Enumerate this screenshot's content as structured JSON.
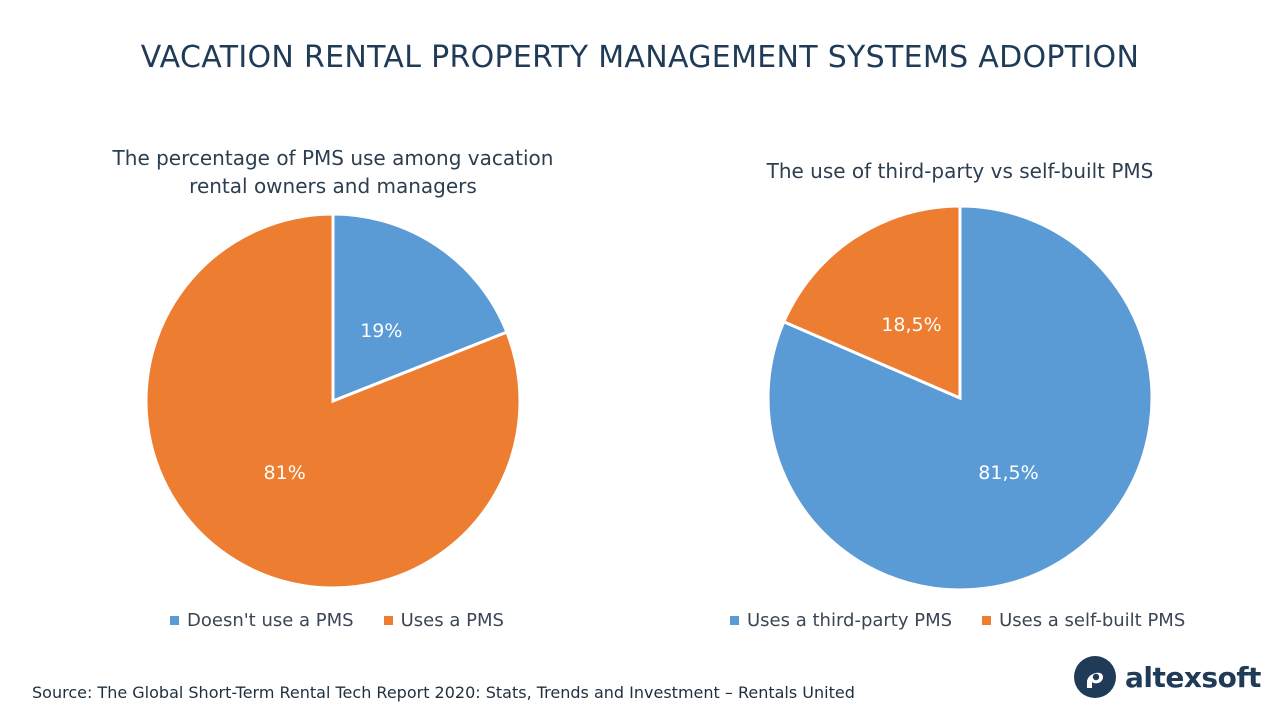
{
  "title": "VACATION RENTAL PROPERTY MANAGEMENT SYSTEMS ADOPTION",
  "colors": {
    "blue": "#5b9bd5",
    "orange": "#ed7d31",
    "title": "#1f3b57"
  },
  "chart_data": [
    {
      "type": "pie",
      "title": "The percentage of PMS use among vacation rental owners and managers",
      "title_lines": [
        "The percentage of PMS use among vacation",
        "rental owners and managers"
      ],
      "slices": [
        {
          "name": "Doesn't use a PMS",
          "value": 19,
          "label": "19%",
          "color": "#5b9bd5"
        },
        {
          "name": "Uses a PMS",
          "value": 81,
          "label": "81%",
          "color": "#ed7d31"
        }
      ],
      "legend_position": "bottom"
    },
    {
      "type": "pie",
      "title": "The use of third-party vs self-built PMS",
      "title_lines": [
        "The use of third-party vs self-built PMS"
      ],
      "slices": [
        {
          "name": "Uses a third-party PMS",
          "value": 81.5,
          "label": "81,5%",
          "color": "#5b9bd5"
        },
        {
          "name": "Uses a self-built PMS",
          "value": 18.5,
          "label": "18,5%",
          "color": "#ed7d31"
        }
      ],
      "legend_position": "bottom"
    }
  ],
  "source": "Source: The Global Short-Term Rental Tech Report 2020: Stats, Trends and Investment – Rentals United",
  "logo": {
    "text": "altexsoft",
    "icon": "altexsoft-logo-icon"
  }
}
